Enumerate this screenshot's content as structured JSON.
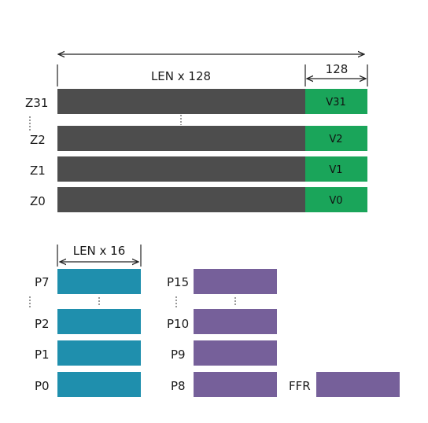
{
  "vector_registers": {
    "width_label": "LEN x 128",
    "low_width_label": "128",
    "bar_color": "#4d4d4d",
    "low_color": "#1aa55a",
    "rows": [
      {
        "name": "Z31",
        "low": "V31"
      },
      {
        "name": "Z2",
        "low": "V2"
      },
      {
        "name": "Z1",
        "low": "V1"
      },
      {
        "name": "Z0",
        "low": "V0"
      }
    ]
  },
  "predicate_registers": {
    "width_label": "LEN x 16",
    "left_color": "#1f8fad",
    "right_color": "#76609a",
    "left_column": [
      "P7",
      "P2",
      "P1",
      "P0"
    ],
    "right_column": [
      "P15",
      "P10",
      "P9",
      "P8"
    ],
    "ffr": "FFR"
  }
}
